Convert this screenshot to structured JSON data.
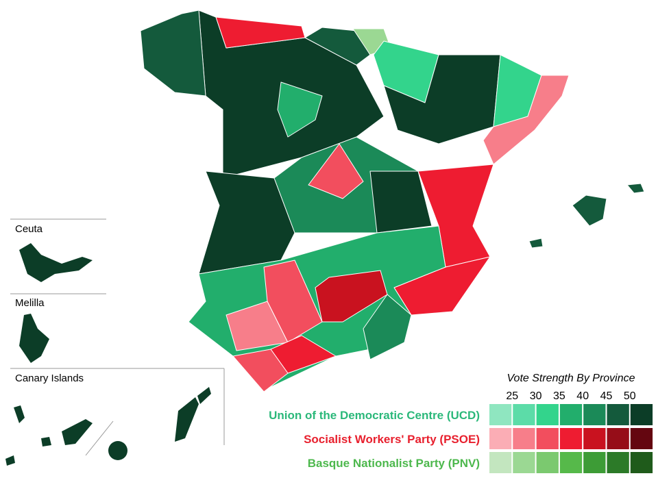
{
  "insets": [
    "Ceuta",
    "Melilla",
    "Canary Islands"
  ],
  "legend": {
    "title": "Vote Strength By Province",
    "ticks": [
      25,
      30,
      35,
      40,
      45,
      50
    ],
    "parties": [
      {
        "name": "Union of the Democratic Centre (UCD)",
        "color": "#2bb87a",
        "colors": [
          "#8fe6c0",
          "#5cdca8",
          "#33d48c",
          "#22ae6c",
          "#1b8a58",
          "#145a3c",
          "#0c3d27"
        ]
      },
      {
        "name": "Socialist Workers' Party (PSOE)",
        "color": "#e8202e",
        "colors": [
          "#fbadb5",
          "#f77e8a",
          "#f24e5e",
          "#ee1c31",
          "#c9121f",
          "#960d18",
          "#640610"
        ]
      },
      {
        "name": "Basque Nationalist Party (PNV)",
        "color": "#4db84d",
        "colors": [
          "#c3e6bf",
          "#9bd893",
          "#7bc96f",
          "#56b94a",
          "#3d9c36",
          "#2c7a28",
          "#1f5b1b"
        ]
      }
    ]
  }
}
